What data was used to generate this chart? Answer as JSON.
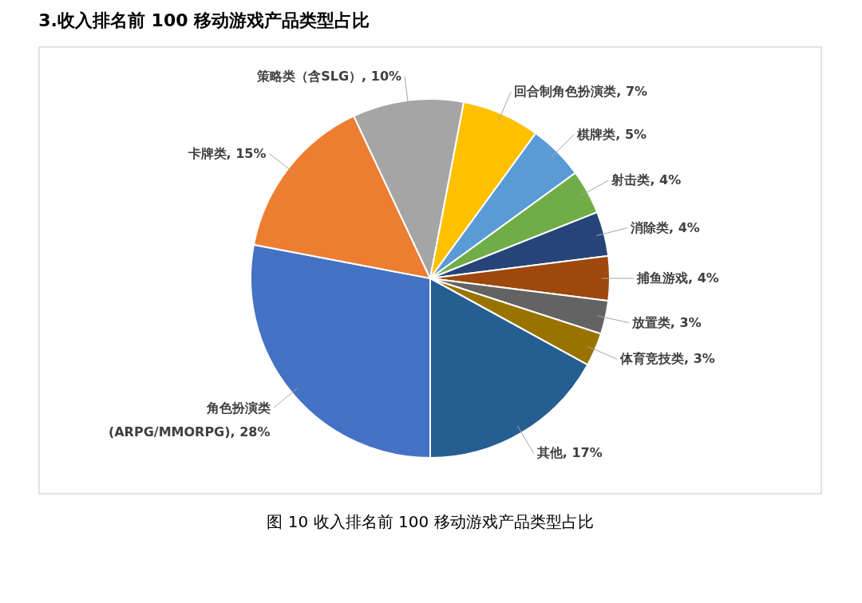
{
  "chart_data": {
    "type": "pie",
    "title": "3.收入排名前 100 移动游戏产品类型占比",
    "categories": [
      "角色扮演类 (ARPG/MMORPG)",
      "卡牌类",
      "策略类（含SLG）",
      "回合制角色扮演类",
      "棋牌类",
      "射击类",
      "消除类",
      "捕鱼游戏",
      "放置类",
      "体育竞技类",
      "其他"
    ],
    "values": [
      28,
      15,
      10,
      7,
      5,
      4,
      4,
      4,
      3,
      3,
      17
    ],
    "colors": [
      "#4472c4",
      "#ed7d31",
      "#a5a5a5",
      "#ffc000",
      "#5b9bd5",
      "#70ad47",
      "#264478",
      "#9e480e",
      "#636363",
      "#997300",
      "#255e91"
    ],
    "value_labels": [
      "28%",
      "15%",
      "10%",
      "7%",
      "5%",
      "4%",
      "4%",
      "4%",
      "3%",
      "3%",
      "17%"
    ],
    "annotations": [
      "图 10 收入排名前 100 移动游戏产品类型占比"
    ],
    "legend": false
  }
}
